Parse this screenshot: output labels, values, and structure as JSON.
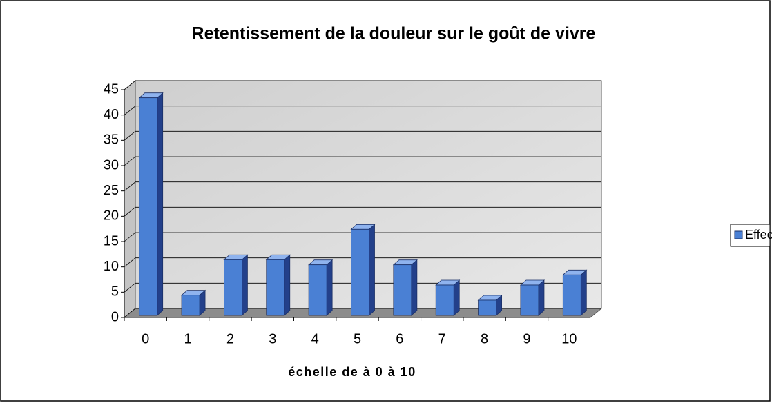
{
  "chart_data": {
    "type": "bar",
    "title": "Retentissement de la douleur sur le goût de vivre",
    "x_label": "échelle de à 0 à 10",
    "categories": [
      "0",
      "1",
      "2",
      "3",
      "4",
      "5",
      "6",
      "7",
      "8",
      "9",
      "10"
    ],
    "series": [
      {
        "name": "Effectif",
        "color": "#4a80d4",
        "values": [
          43,
          4,
          11,
          11,
          10,
          17,
          10,
          6,
          3,
          6,
          8
        ]
      }
    ],
    "ylim": [
      0,
      45
    ],
    "yticks": [
      0,
      5,
      10,
      15,
      20,
      25,
      30,
      35,
      40,
      45
    ],
    "grid": true,
    "legend": "right"
  }
}
